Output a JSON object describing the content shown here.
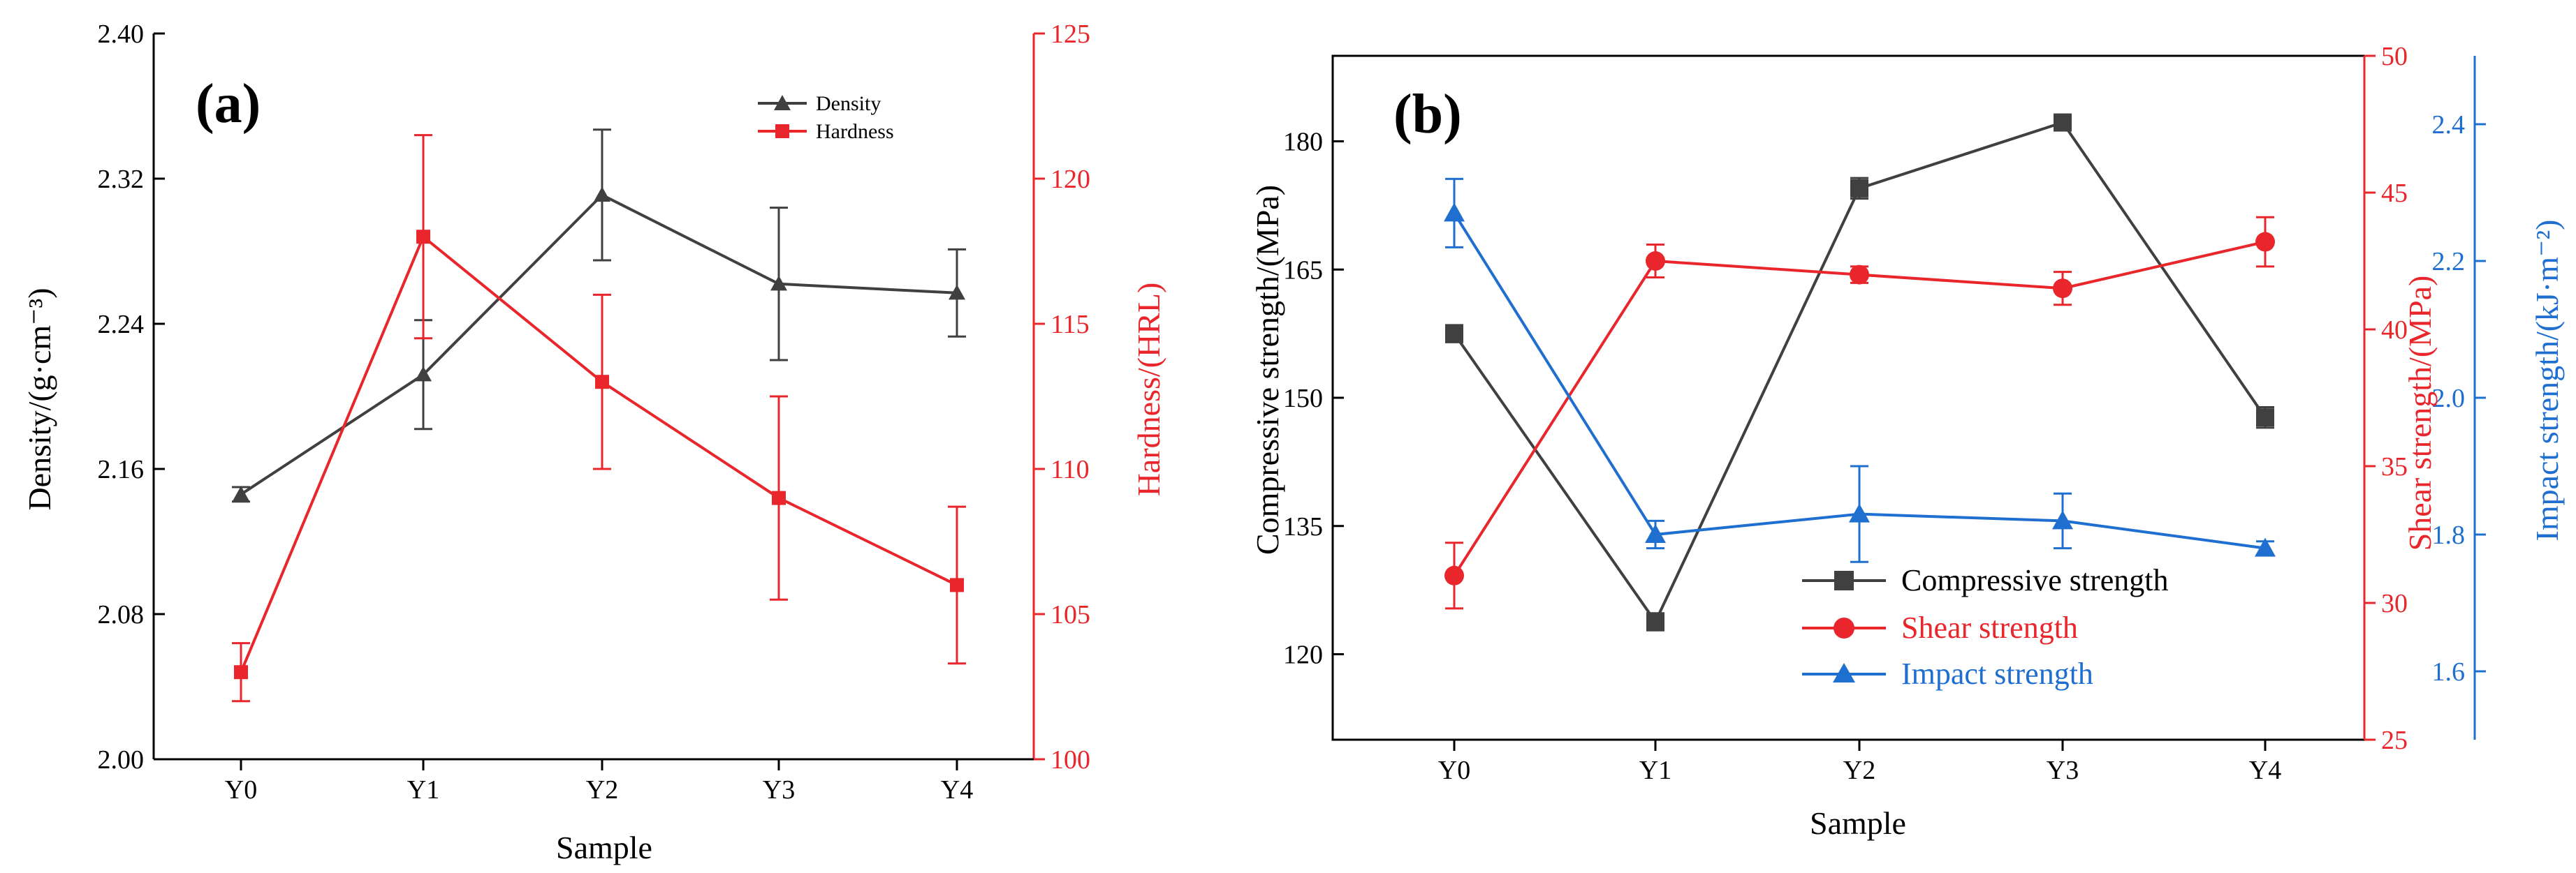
{
  "chart_data": [
    {
      "panel_label": "(a)",
      "type": "line",
      "categories": [
        "Y0",
        "Y1",
        "Y2",
        "Y3",
        "Y4"
      ],
      "xlabel": "Sample",
      "y_left": {
        "label": "Density/(g·cm⁻³)",
        "ylim": [
          2.0,
          2.4
        ],
        "ticks": [
          "2.00",
          "2.08",
          "2.16",
          "2.24",
          "2.32",
          "2.40"
        ],
        "color": "#404040"
      },
      "y_right": {
        "label": "Hardness/(HRL)",
        "ylim": [
          100,
          125
        ],
        "ticks": [
          "100",
          "105",
          "110",
          "115",
          "120",
          "125"
        ],
        "color": "#e8262b"
      },
      "legend": {
        "position": "top-right",
        "entries": [
          "Density",
          "Hardness"
        ]
      },
      "series": [
        {
          "name": "Density",
          "axis": "left",
          "marker": "triangle",
          "color": "#404040",
          "values": [
            2.146,
            2.212,
            2.311,
            2.262,
            2.257
          ],
          "errors": [
            0.004,
            0.03,
            0.036,
            0.042,
            0.024
          ]
        },
        {
          "name": "Hardness",
          "axis": "right",
          "marker": "square",
          "color": "#e8262b",
          "values": [
            103.0,
            118.0,
            113.0,
            109.0,
            106.0
          ],
          "errors": [
            1.0,
            3.5,
            3.0,
            3.5,
            2.7
          ]
        }
      ]
    },
    {
      "panel_label": "(b)",
      "type": "line",
      "categories": [
        "Y0",
        "Y1",
        "Y2",
        "Y3",
        "Y4"
      ],
      "xlabel": "Sample",
      "y_left": {
        "label": "Compressive strength/(MPa)",
        "ylim": [
          110,
          190
        ],
        "ticks": [
          "120",
          "135",
          "150",
          "165",
          "180"
        ],
        "color": "#000000"
      },
      "y_right": {
        "label": "Shear strength/(MPa)",
        "ylim": [
          25,
          50
        ],
        "ticks": [
          "25",
          "30",
          "35",
          "40",
          "45",
          "50"
        ],
        "color": "#e8262b"
      },
      "y_right2": {
        "label": "Impact strength/(kJ·m⁻²)",
        "ylim": [
          1.5,
          2.5
        ],
        "ticks": [
          "1.6",
          "1.8",
          "2.0",
          "2.2",
          "2.4"
        ],
        "color": "#1f6fd0"
      },
      "legend": {
        "position": "bottom-center",
        "entries": [
          "Compressive strength",
          "Shear strength",
          "Impact strength"
        ]
      },
      "series": [
        {
          "name": "Compressive strength",
          "axis": "left",
          "marker": "square",
          "color": "#404040",
          "values": [
            157.5,
            123.8,
            174.5,
            182.2,
            147.7
          ],
          "errors": [
            1.0,
            1.0,
            1.2,
            0.5,
            1.2
          ]
        },
        {
          "name": "Shear strength",
          "axis": "right",
          "marker": "circle",
          "color": "#e8262b",
          "values": [
            31.0,
            42.5,
            42.0,
            41.5,
            43.2
          ],
          "errors": [
            1.2,
            0.6,
            0.3,
            0.6,
            0.9
          ]
        },
        {
          "name": "Impact strength",
          "axis": "right2",
          "marker": "triangle",
          "color": "#1f6fd0",
          "values": [
            2.27,
            1.8,
            1.83,
            1.82,
            1.78
          ],
          "errors": [
            0.05,
            0.02,
            0.07,
            0.04,
            0.01
          ]
        }
      ]
    }
  ]
}
